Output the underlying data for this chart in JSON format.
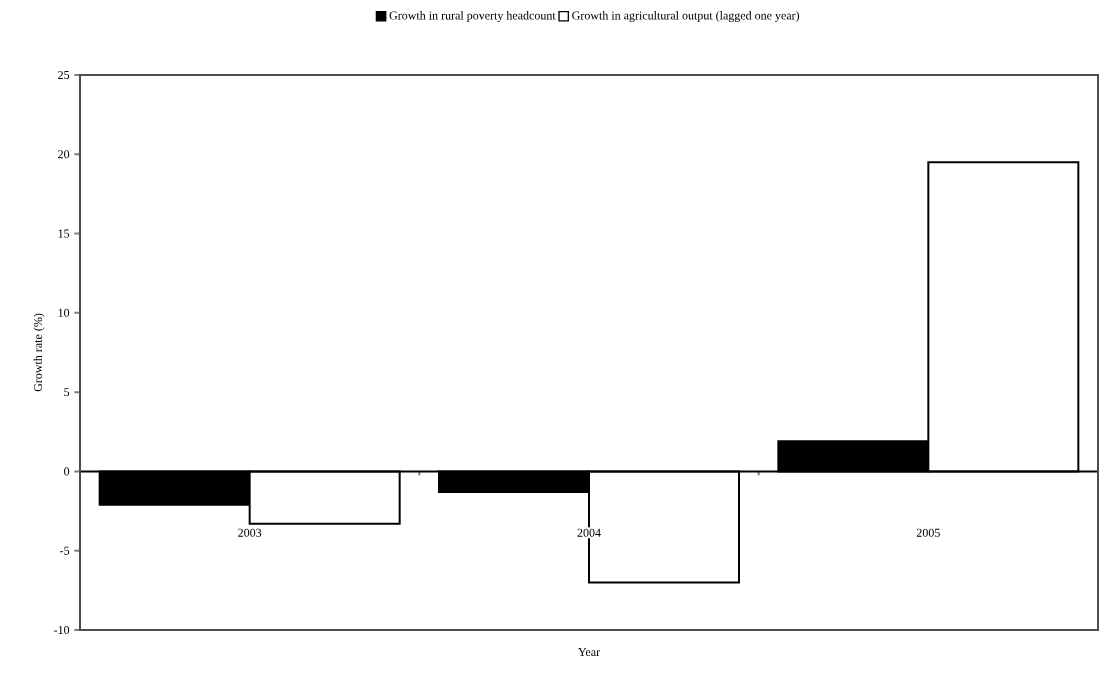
{
  "chart_data": {
    "type": "bar",
    "xlabel": "Year",
    "ylabel": "Growth rate (%)",
    "categories": [
      "2003",
      "2004",
      "2005"
    ],
    "series": [
      {
        "name": "Growth in rural poverty headcount",
        "color": "#000000",
        "values": [
          -2.1,
          -1.3,
          1.9
        ]
      },
      {
        "name": "Growth in agricultural output (lagged one year)",
        "color": "#ffffff",
        "values": [
          -3.3,
          -7.0,
          19.5
        ]
      }
    ],
    "ylim": [
      -10,
      25
    ],
    "yticks": [
      -10,
      -5,
      0,
      5,
      10,
      15,
      20,
      25
    ],
    "legend": "top"
  }
}
